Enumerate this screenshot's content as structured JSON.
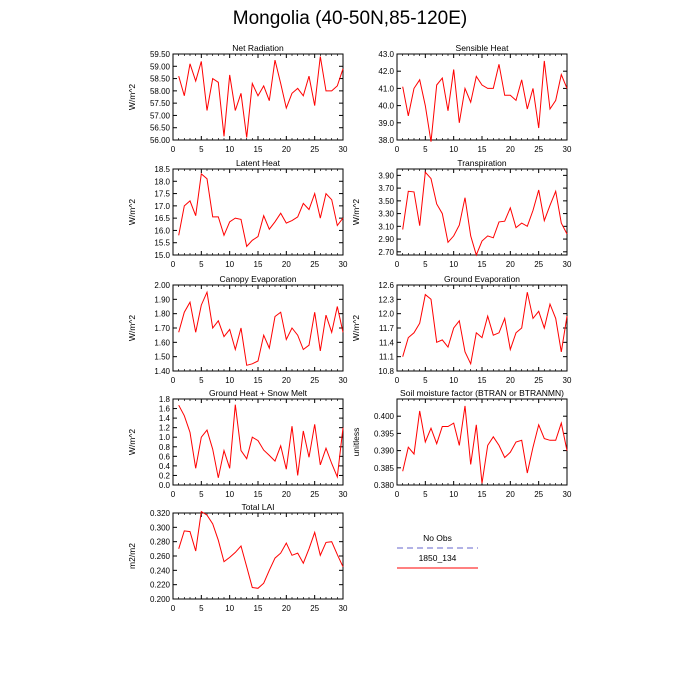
{
  "title": "Mongolia (40-50N,85-120E)",
  "legend": {
    "entries": [
      {
        "label": "No Obs",
        "color": "#9999dd",
        "dash": true
      },
      {
        "label": "1850_134",
        "color": "#ff0000",
        "dash": false
      }
    ]
  },
  "colors": {
    "series": "#ff0000",
    "axis": "#000000",
    "obs": "#9999dd"
  },
  "chart_data": [
    {
      "type": "line",
      "title": "Net Radiation",
      "xlabel": "",
      "ylabel": "W/m^2",
      "xlim": [
        0,
        30
      ],
      "ylim": [
        56.0,
        59.5
      ],
      "xticks": [
        0,
        5,
        10,
        15,
        20,
        25,
        30
      ],
      "yticks": [
        56.0,
        56.5,
        57.0,
        57.5,
        58.0,
        58.5,
        59.0,
        59.5
      ],
      "ytick_labels": [
        "56.00",
        "56.50",
        "57.00",
        "57.50",
        "58.00",
        "58.50",
        "59.00",
        "59.50"
      ],
      "x": [
        1,
        2,
        3,
        4,
        5,
        6,
        7,
        8,
        9,
        10,
        11,
        12,
        13,
        14,
        15,
        16,
        17,
        18,
        19,
        20,
        21,
        22,
        23,
        24,
        25,
        26,
        27,
        28,
        29,
        30
      ],
      "series": [
        {
          "name": "1850_134",
          "values": [
            58.6,
            57.8,
            59.1,
            58.4,
            59.2,
            57.2,
            58.5,
            58.35,
            56.15,
            58.65,
            57.2,
            57.9,
            56.1,
            58.3,
            57.8,
            58.2,
            57.6,
            59.25,
            58.3,
            57.3,
            57.9,
            58.1,
            57.8,
            58.6,
            57.4,
            59.4,
            58.0,
            58.0,
            58.2,
            58.9
          ]
        }
      ]
    },
    {
      "type": "line",
      "title": "Sensible Heat",
      "xlabel": "",
      "ylabel": "",
      "xlim": [
        0,
        30
      ],
      "ylim": [
        38.0,
        43.0
      ],
      "xticks": [
        0,
        5,
        10,
        15,
        20,
        25,
        30
      ],
      "yticks": [
        38,
        39,
        40,
        41,
        42,
        43
      ],
      "ytick_labels": [
        "38.0",
        "39.0",
        "40.0",
        "41.0",
        "42.0",
        "43.0"
      ],
      "x": [
        1,
        2,
        3,
        4,
        5,
        6,
        7,
        8,
        9,
        10,
        11,
        12,
        13,
        14,
        15,
        16,
        17,
        18,
        19,
        20,
        21,
        22,
        23,
        24,
        25,
        26,
        27,
        28,
        29,
        30
      ],
      "series": [
        {
          "name": "1850_134",
          "values": [
            41.1,
            39.4,
            41.0,
            41.5,
            40.0,
            37.9,
            41.2,
            41.6,
            39.7,
            42.1,
            39.0,
            41.0,
            40.2,
            41.7,
            41.2,
            41.0,
            41.0,
            42.4,
            40.6,
            40.6,
            40.3,
            41.5,
            39.8,
            41.0,
            38.7,
            42.6,
            39.8,
            40.3,
            41.8,
            41.0
          ]
        }
      ]
    },
    {
      "type": "line",
      "title": "Latent Heat",
      "xlabel": "",
      "ylabel": "W/m^2",
      "xlim": [
        0,
        30
      ],
      "ylim": [
        15.0,
        18.5
      ],
      "xticks": [
        0,
        5,
        10,
        15,
        20,
        25,
        30
      ],
      "yticks": [
        15.0,
        15.5,
        16.0,
        16.5,
        17.0,
        17.5,
        18.0,
        18.5
      ],
      "ytick_labels": [
        "15.0",
        "15.5",
        "16.0",
        "16.5",
        "17.0",
        "17.5",
        "18.0",
        "18.5"
      ],
      "x": [
        1,
        2,
        3,
        4,
        5,
        6,
        7,
        8,
        9,
        10,
        11,
        12,
        13,
        14,
        15,
        16,
        17,
        18,
        19,
        20,
        21,
        22,
        23,
        24,
        25,
        26,
        27,
        28,
        29,
        30
      ],
      "series": [
        {
          "name": "1850_134",
          "values": [
            15.8,
            17.0,
            17.2,
            16.6,
            18.3,
            18.1,
            16.55,
            16.55,
            15.8,
            16.35,
            16.5,
            16.45,
            15.35,
            15.6,
            15.75,
            16.6,
            16.05,
            16.35,
            16.7,
            16.3,
            16.4,
            16.55,
            17.1,
            16.85,
            17.5,
            16.5,
            17.5,
            17.25,
            16.2,
            16.5
          ]
        }
      ]
    },
    {
      "type": "line",
      "title": "Transpiration",
      "xlabel": "",
      "ylabel": "W/m^2",
      "xlim": [
        0,
        30
      ],
      "ylim": [
        2.65,
        4.0
      ],
      "xticks": [
        0,
        5,
        10,
        15,
        20,
        25,
        30
      ],
      "yticks": [
        2.7,
        2.9,
        3.1,
        3.3,
        3.5,
        3.7,
        3.9
      ],
      "ytick_labels": [
        "2.70",
        "2.90",
        "3.10",
        "3.30",
        "3.50",
        "3.70",
        "3.90"
      ],
      "x": [
        1,
        2,
        3,
        4,
        5,
        6,
        7,
        8,
        9,
        10,
        11,
        12,
        13,
        14,
        15,
        16,
        17,
        18,
        19,
        20,
        21,
        22,
        23,
        24,
        25,
        26,
        27,
        28,
        29,
        30
      ],
      "series": [
        {
          "name": "1850_134",
          "values": [
            3.05,
            3.65,
            3.64,
            3.11,
            3.95,
            3.85,
            3.45,
            3.3,
            2.85,
            2.95,
            3.12,
            3.55,
            2.95,
            2.65,
            2.87,
            2.95,
            2.92,
            3.17,
            3.18,
            3.39,
            3.08,
            3.15,
            3.1,
            3.35,
            3.67,
            3.19,
            3.43,
            3.65,
            3.15,
            2.98
          ]
        }
      ]
    },
    {
      "type": "line",
      "title": "Canopy Evaporation",
      "xlabel": "",
      "ylabel": "W/m^2",
      "xlim": [
        0,
        30
      ],
      "ylim": [
        1.4,
        2.0
      ],
      "xticks": [
        0,
        5,
        10,
        15,
        20,
        25,
        30
      ],
      "yticks": [
        1.4,
        1.5,
        1.6,
        1.7,
        1.8,
        1.9,
        2.0
      ],
      "ytick_labels": [
        "1.40",
        "1.50",
        "1.60",
        "1.70",
        "1.80",
        "1.90",
        "2.00"
      ],
      "x": [
        1,
        2,
        3,
        4,
        5,
        6,
        7,
        8,
        9,
        10,
        11,
        12,
        13,
        14,
        15,
        16,
        17,
        18,
        19,
        20,
        21,
        22,
        23,
        24,
        25,
        26,
        27,
        28,
        29,
        30
      ],
      "series": [
        {
          "name": "1850_134",
          "values": [
            1.67,
            1.81,
            1.88,
            1.67,
            1.86,
            1.95,
            1.7,
            1.75,
            1.64,
            1.69,
            1.55,
            1.7,
            1.44,
            1.45,
            1.47,
            1.65,
            1.56,
            1.78,
            1.81,
            1.62,
            1.7,
            1.65,
            1.55,
            1.58,
            1.81,
            1.54,
            1.79,
            1.67,
            1.85,
            1.67
          ]
        }
      ]
    },
    {
      "type": "line",
      "title": "Ground Evaporation",
      "xlabel": "",
      "ylabel": "W/m^2",
      "xlim": [
        0,
        30
      ],
      "ylim": [
        10.8,
        12.6
      ],
      "xticks": [
        0,
        5,
        10,
        15,
        20,
        25,
        30
      ],
      "yticks": [
        10.8,
        11.1,
        11.4,
        11.7,
        12.0,
        12.3,
        12.6
      ],
      "ytick_labels": [
        "10.8",
        "11.1",
        "11.4",
        "11.7",
        "12.0",
        "12.3",
        "12.6"
      ],
      "x": [
        1,
        2,
        3,
        4,
        5,
        6,
        7,
        8,
        9,
        10,
        11,
        12,
        13,
        14,
        15,
        16,
        17,
        18,
        19,
        20,
        21,
        22,
        23,
        24,
        25,
        26,
        27,
        28,
        29,
        30
      ],
      "series": [
        {
          "name": "1850_134",
          "values": [
            11.1,
            11.5,
            11.6,
            11.8,
            12.4,
            12.3,
            11.4,
            11.45,
            11.3,
            11.7,
            11.85,
            11.2,
            10.95,
            11.6,
            11.5,
            11.95,
            11.55,
            11.6,
            11.9,
            11.25,
            11.6,
            11.7,
            12.45,
            11.9,
            12.05,
            11.7,
            12.2,
            11.9,
            11.2,
            11.95
          ]
        }
      ]
    },
    {
      "type": "line",
      "title": "Ground Heat + Snow Melt",
      "xlabel": "",
      "ylabel": "W/m^2",
      "xlim": [
        0,
        30
      ],
      "ylim": [
        0.0,
        1.8
      ],
      "xticks": [
        0,
        5,
        10,
        15,
        20,
        25,
        30
      ],
      "yticks": [
        0.0,
        0.2,
        0.4,
        0.6,
        0.8,
        1.0,
        1.2,
        1.4,
        1.6,
        1.8
      ],
      "ytick_labels": [
        "0.0",
        "0.2",
        "0.4",
        "0.6",
        "0.8",
        "1.0",
        "1.2",
        "1.4",
        "1.6",
        "1.8"
      ],
      "x": [
        1,
        2,
        3,
        4,
        5,
        6,
        7,
        8,
        9,
        10,
        11,
        12,
        13,
        14,
        15,
        16,
        17,
        18,
        19,
        20,
        21,
        22,
        23,
        24,
        25,
        26,
        27,
        28,
        29,
        30
      ],
      "series": [
        {
          "name": "1850_134",
          "values": [
            1.67,
            1.45,
            1.1,
            0.35,
            1.0,
            1.15,
            0.75,
            0.15,
            0.72,
            0.35,
            1.68,
            0.72,
            0.55,
            1.0,
            0.93,
            0.73,
            0.62,
            0.5,
            0.82,
            0.33,
            1.23,
            0.2,
            1.13,
            0.58,
            1.27,
            0.42,
            0.77,
            0.45,
            0.17,
            1.2
          ]
        }
      ]
    },
    {
      "type": "line",
      "title": "Soil moisture factor (BTRAN or BTRANMN)",
      "xlabel": "",
      "ylabel": "unitless",
      "xlim": [
        0,
        30
      ],
      "ylim": [
        0.38,
        0.405
      ],
      "xticks": [
        0,
        5,
        10,
        15,
        20,
        25,
        30
      ],
      "yticks": [
        0.38,
        0.385,
        0.39,
        0.395,
        0.4
      ],
      "ytick_labels": [
        "0.380",
        "0.385",
        "0.390",
        "0.395",
        "0.400"
      ],
      "x": [
        1,
        2,
        3,
        4,
        5,
        6,
        7,
        8,
        9,
        10,
        11,
        12,
        13,
        14,
        15,
        16,
        17,
        18,
        19,
        20,
        21,
        22,
        23,
        24,
        25,
        26,
        27,
        28,
        29,
        30
      ],
      "series": [
        {
          "name": "1850_134",
          "values": [
            0.384,
            0.391,
            0.389,
            0.4015,
            0.3925,
            0.3965,
            0.392,
            0.397,
            0.397,
            0.398,
            0.3915,
            0.403,
            0.386,
            0.3975,
            0.3805,
            0.3915,
            0.394,
            0.3915,
            0.388,
            0.3895,
            0.3925,
            0.393,
            0.3835,
            0.391,
            0.3975,
            0.3935,
            0.393,
            0.393,
            0.398,
            0.39
          ]
        }
      ]
    },
    {
      "type": "line",
      "title": "Total LAI",
      "xlabel": "",
      "ylabel": "m2/m2",
      "xlim": [
        0,
        30
      ],
      "ylim": [
        0.2,
        0.32
      ],
      "xticks": [
        0,
        5,
        10,
        15,
        20,
        25,
        30
      ],
      "yticks": [
        0.2,
        0.22,
        0.24,
        0.26,
        0.28,
        0.3,
        0.32
      ],
      "ytick_labels": [
        "0.200",
        "0.220",
        "0.240",
        "0.260",
        "0.280",
        "0.300",
        "0.320"
      ],
      "x": [
        1,
        2,
        3,
        4,
        5,
        6,
        7,
        8,
        9,
        10,
        11,
        12,
        13,
        14,
        15,
        16,
        17,
        18,
        19,
        20,
        21,
        22,
        23,
        24,
        25,
        26,
        27,
        28,
        29,
        30
      ],
      "series": [
        {
          "name": "1850_134",
          "values": [
            0.27,
            0.295,
            0.294,
            0.267,
            0.322,
            0.317,
            0.305,
            0.282,
            0.252,
            0.258,
            0.265,
            0.274,
            0.245,
            0.216,
            0.215,
            0.222,
            0.24,
            0.257,
            0.264,
            0.278,
            0.261,
            0.264,
            0.25,
            0.27,
            0.293,
            0.261,
            0.279,
            0.28,
            0.262,
            0.245
          ]
        }
      ]
    }
  ]
}
